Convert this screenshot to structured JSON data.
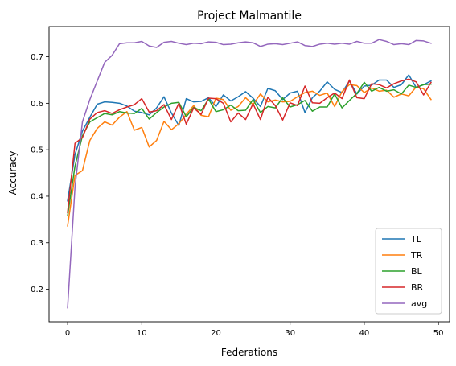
{
  "chart_data": {
    "type": "line",
    "title": "Project Malmantile",
    "xlabel": "Federations",
    "ylabel": "Accuracy",
    "xlim": [
      -2.5,
      51.5
    ],
    "ylim": [
      0.13,
      0.765
    ],
    "xticks": [
      0,
      10,
      20,
      30,
      40,
      50
    ],
    "yticks": [
      0.2,
      0.3,
      0.4,
      0.5,
      0.6,
      0.7
    ],
    "grid": false,
    "legend_position": "bottom-right",
    "x": [
      0,
      1,
      2,
      3,
      4,
      5,
      6,
      7,
      8,
      9,
      10,
      11,
      12,
      13,
      14,
      15,
      16,
      17,
      18,
      19,
      20,
      21,
      22,
      23,
      24,
      25,
      26,
      27,
      28,
      29,
      30,
      31,
      32,
      33,
      34,
      35,
      36,
      37,
      38,
      39,
      40,
      41,
      42,
      43,
      44,
      45,
      46,
      47,
      48,
      49
    ],
    "series": [
      {
        "name": "TL",
        "color": "#1f77b4",
        "values": [
          0.39,
          0.49,
          0.54,
          0.57,
          0.598,
          0.603,
          0.602,
          0.6,
          0.594,
          0.583,
          0.58,
          0.575,
          0.59,
          0.614,
          0.579,
          0.552,
          0.61,
          0.603,
          0.604,
          0.612,
          0.593,
          0.618,
          0.605,
          0.614,
          0.625,
          0.611,
          0.593,
          0.632,
          0.627,
          0.608,
          0.622,
          0.626,
          0.58,
          0.612,
          0.626,
          0.646,
          0.63,
          0.623,
          0.648,
          0.62,
          0.637,
          0.639,
          0.65,
          0.65,
          0.634,
          0.64,
          0.661,
          0.634,
          0.64,
          0.648
        ]
      },
      {
        "name": "TR",
        "color": "#ff7f0e",
        "values": [
          0.336,
          0.445,
          0.455,
          0.52,
          0.546,
          0.56,
          0.553,
          0.57,
          0.582,
          0.542,
          0.548,
          0.506,
          0.52,
          0.561,
          0.543,
          0.556,
          0.576,
          0.595,
          0.574,
          0.571,
          0.611,
          0.608,
          0.585,
          0.593,
          0.612,
          0.597,
          0.62,
          0.603,
          0.607,
          0.603,
          0.604,
          0.614,
          0.623,
          0.626,
          0.617,
          0.622,
          0.593,
          0.625,
          0.64,
          0.638,
          0.623,
          0.633,
          0.626,
          0.628,
          0.613,
          0.62,
          0.616,
          0.635,
          0.631,
          0.608
        ]
      },
      {
        "name": "BL",
        "color": "#2ca02c",
        "values": [
          0.358,
          0.465,
          0.53,
          0.56,
          0.569,
          0.578,
          0.575,
          0.582,
          0.579,
          0.578,
          0.589,
          0.566,
          0.58,
          0.592,
          0.6,
          0.602,
          0.571,
          0.591,
          0.584,
          0.609,
          0.582,
          0.586,
          0.596,
          0.584,
          0.585,
          0.608,
          0.58,
          0.593,
          0.59,
          0.612,
          0.592,
          0.597,
          0.606,
          0.583,
          0.592,
          0.592,
          0.62,
          0.59,
          0.606,
          0.621,
          0.645,
          0.626,
          0.634,
          0.626,
          0.629,
          0.62,
          0.639,
          0.634,
          0.64,
          0.641
        ]
      },
      {
        "name": "BR",
        "color": "#d62728",
        "values": [
          0.365,
          0.514,
          0.526,
          0.566,
          0.58,
          0.584,
          0.578,
          0.586,
          0.592,
          0.597,
          0.61,
          0.581,
          0.584,
          0.597,
          0.565,
          0.6,
          0.555,
          0.59,
          0.576,
          0.611,
          0.61,
          0.6,
          0.56,
          0.579,
          0.565,
          0.599,
          0.565,
          0.613,
          0.595,
          0.564,
          0.601,
          0.595,
          0.637,
          0.601,
          0.6,
          0.612,
          0.622,
          0.61,
          0.65,
          0.612,
          0.61,
          0.642,
          0.64,
          0.633,
          0.642,
          0.648,
          0.652,
          0.646,
          0.618,
          0.645
        ]
      },
      {
        "name": "avg",
        "color": "#9467bd",
        "values": [
          0.16,
          0.42,
          0.56,
          0.608,
          0.648,
          0.688,
          0.703,
          0.728,
          0.73,
          0.73,
          0.733,
          0.723,
          0.72,
          0.731,
          0.733,
          0.729,
          0.726,
          0.729,
          0.728,
          0.732,
          0.731,
          0.726,
          0.727,
          0.73,
          0.732,
          0.73,
          0.722,
          0.727,
          0.728,
          0.726,
          0.729,
          0.732,
          0.724,
          0.722,
          0.727,
          0.729,
          0.727,
          0.729,
          0.727,
          0.733,
          0.729,
          0.729,
          0.737,
          0.733,
          0.726,
          0.728,
          0.726,
          0.735,
          0.734,
          0.729
        ]
      }
    ]
  }
}
